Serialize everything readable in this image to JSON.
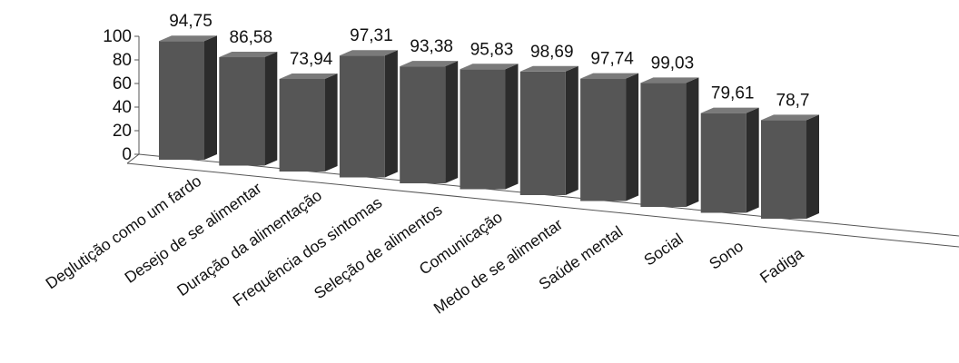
{
  "chart_data": {
    "type": "bar",
    "title": "",
    "xlabel": "",
    "ylabel": "",
    "ylim": [
      0,
      100
    ],
    "y_ticks": [
      "0",
      "20",
      "40",
      "60",
      "80",
      "100"
    ],
    "grid": false,
    "legend": "none",
    "style": "3d",
    "categories": [
      "Deglutição como um fardo",
      "Desejo de se alimentar",
      "Duração da alimentação",
      "Frequência dos sintomas",
      "Seleção de alimentos",
      "Comunicação",
      "Medo de se alimentar",
      "Saúde mental",
      "Social",
      "Sono",
      "Fadiga"
    ],
    "values": [
      94.75,
      86.58,
      73.94,
      97.31,
      93.38,
      95.83,
      98.69,
      97.74,
      99.03,
      79.61,
      78.7
    ],
    "value_labels": [
      "94,75",
      "86,58",
      "73,94",
      "97,31",
      "93,38",
      "95,83",
      "98,69",
      "97,74",
      "99,03",
      "79,61",
      "78,7"
    ],
    "colors": {
      "bar_front": "#565656",
      "bar_side": "#2c2c2c",
      "bar_top": "#7a7a7a",
      "axis": "#555555"
    }
  }
}
